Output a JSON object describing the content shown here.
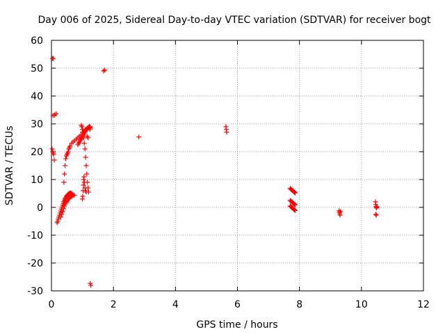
{
  "chart_data": {
    "type": "scatter",
    "title": "Day 006 of 2025, Sidereal Day-to-day VTEC variation (SDTVAR) for receiver bogt",
    "xlabel": "GPS time / hours",
    "ylabel": "SDTVAR / TECUs",
    "xlim": [
      0,
      12
    ],
    "ylim": [
      -30,
      60
    ],
    "xticks": [
      0,
      2,
      4,
      6,
      8,
      10,
      12
    ],
    "yticks": [
      -30,
      -20,
      -10,
      0,
      10,
      20,
      30,
      40,
      50,
      60
    ],
    "grid": true,
    "marker": "+",
    "color": "#ff0000",
    "series": [
      {
        "name": "SDTVAR",
        "x": [
          0.03,
          0.06,
          0.05,
          0.1,
          0.15,
          0.02,
          0.04,
          0.06,
          0.07,
          0.09,
          0.18,
          0.2,
          0.22,
          0.24,
          0.26,
          0.28,
          0.3,
          0.32,
          0.34,
          0.36,
          0.38,
          0.4,
          0.42,
          0.44,
          0.46,
          0.48,
          0.5,
          0.52,
          0.54,
          0.56,
          0.58,
          0.6,
          0.62,
          0.64,
          0.66,
          0.68,
          0.3,
          0.33,
          0.36,
          0.39,
          0.42,
          0.45,
          0.48,
          0.51,
          0.54,
          0.57,
          0.6,
          0.63,
          0.66,
          0.7,
          0.74,
          0.4,
          0.42,
          0.44,
          0.46,
          0.48,
          0.5,
          0.52,
          0.54,
          0.56,
          0.58,
          0.6,
          0.65,
          0.7,
          0.75,
          0.8,
          0.85,
          0.9,
          0.95,
          1.0,
          1.05,
          1.1,
          1.15,
          1.2,
          1.25,
          0.85,
          0.88,
          0.9,
          0.93,
          0.95,
          0.98,
          1.0,
          1.03,
          1.05,
          1.08,
          1.1,
          1.13,
          1.15,
          1.18,
          1.2,
          1.23,
          1.25,
          0.96,
          0.98,
          1.0,
          1.02,
          1.04,
          1.06,
          1.08,
          1.1,
          1.12,
          1.14,
          1.16,
          1.18,
          1.2,
          1.0,
          1.01,
          1.02,
          1.03,
          1.04,
          1.05,
          1.06,
          1.08,
          1.1,
          1.12,
          1.15,
          1.18,
          1.2,
          1.22,
          1.24,
          1.25,
          1.27,
          1.68,
          1.72,
          2.82,
          5.63,
          5.64,
          5.65,
          7.7,
          7.72,
          7.74,
          7.76,
          7.78,
          7.8,
          7.82,
          7.84,
          7.86,
          7.7,
          7.72,
          7.74,
          7.76,
          7.78,
          7.8,
          7.82,
          7.84,
          7.86,
          7.7,
          7.72,
          7.74,
          7.76,
          7.78,
          7.8,
          7.82,
          7.84,
          7.86,
          9.28,
          9.29,
          9.3,
          9.31,
          9.32,
          10.45,
          10.46,
          10.47,
          10.48,
          10.49,
          10.5,
          10.46,
          10.48
        ],
        "y": [
          53.5,
          53.5,
          33.0,
          33.2,
          33.6,
          21.0,
          20.0,
          19.5,
          19.0,
          17.0,
          -5.5,
          -5.0,
          -4.2,
          -3.5,
          -2.8,
          -2.0,
          -1.3,
          -0.6,
          0.1,
          0.8,
          1.5,
          2.1,
          2.6,
          3.1,
          3.5,
          3.9,
          4.2,
          4.5,
          4.7,
          4.9,
          5.0,
          5.1,
          5.2,
          5.0,
          4.8,
          4.5,
          -3.5,
          -2.5,
          -1.5,
          -0.5,
          0.5,
          1.2,
          1.8,
          2.3,
          2.8,
          3.2,
          3.6,
          3.9,
          4.1,
          4.3,
          4.4,
          9.0,
          12.0,
          15.0,
          17.5,
          18.5,
          19.0,
          19.5,
          20.0,
          21.0,
          21.5,
          22.0,
          23.0,
          23.5,
          24.0,
          24.5,
          25.0,
          25.5,
          26.0,
          27.0,
          27.5,
          28.0,
          28.5,
          28.8,
          28.5,
          22.5,
          23.0,
          23.5,
          24.0,
          24.5,
          25.0,
          25.5,
          26.0,
          26.5,
          27.0,
          27.5,
          28.0,
          28.3,
          28.5,
          28.7,
          28.8,
          28.9,
          29.5,
          29.0,
          28.0,
          27.0,
          25.0,
          23.0,
          21.0,
          18.0,
          15.0,
          12.0,
          9.0,
          7.0,
          5.5,
          3.0,
          4.0,
          6.0,
          8.0,
          10.0,
          11.0,
          9.0,
          7.0,
          6.0,
          5.5,
          25.5,
          25.0,
          28.5,
          29.0,
          28.0,
          -27.3,
          -28.0,
          49.0,
          49.3,
          25.3,
          29.0,
          28.0,
          27.0,
          6.8,
          6.6,
          6.4,
          6.2,
          6.0,
          5.8,
          5.6,
          5.4,
          5.2,
          2.5,
          2.3,
          2.1,
          1.9,
          1.7,
          1.5,
          1.3,
          1.1,
          0.9,
          0.5,
          0.3,
          0.1,
          -0.1,
          -0.3,
          -0.5,
          -0.7,
          -0.9,
          -1.1,
          -1.2,
          -1.8,
          -2.3,
          -2.8,
          -1.5,
          2.0,
          1.0,
          0.3,
          -0.2,
          0.0,
          0.2,
          -2.5,
          -2.8
        ]
      }
    ]
  }
}
